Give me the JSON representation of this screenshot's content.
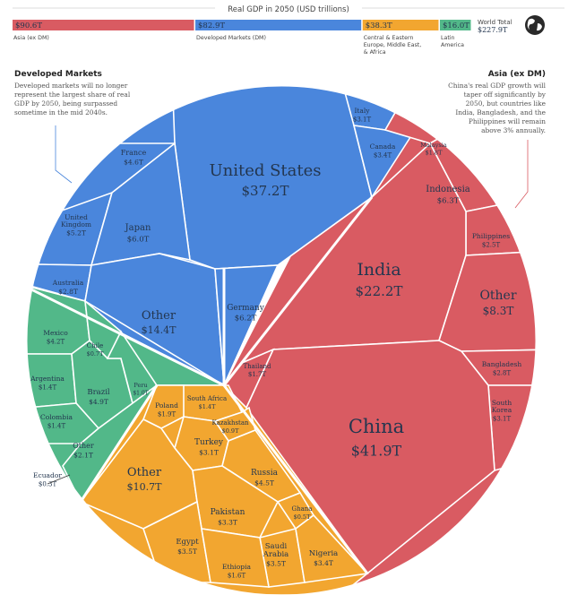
{
  "chart_data": {
    "type": "voronoi-treemap",
    "title": "Real GDP in 2050 (USD trillions)",
    "world_total": {
      "label": "World Total",
      "value_text": "$227.9T",
      "value": 227.9
    },
    "colors": {
      "asia": "#d95b62",
      "developed": "#4a86dc",
      "cee_me_africa": "#f2a630",
      "latin_america": "#52b889",
      "line": "#ffffff"
    },
    "regions": [
      {
        "key": "asia",
        "name": "Asia (ex DM)",
        "value": 90.6,
        "value_text": "$90.6T",
        "color": "#d95b62"
      },
      {
        "key": "developed",
        "name": "Developed Markets (DM)",
        "value": 82.9,
        "value_text": "$82.9T",
        "color": "#4a86dc"
      },
      {
        "key": "cee_me_africa",
        "name": "Central & Eastern Europe, Middle East, & Africa",
        "name_lines": [
          "Central & Eastern",
          "Europe, Middle East,",
          "& Africa"
        ],
        "value": 38.3,
        "value_text": "$38.3T",
        "color": "#f2a630"
      },
      {
        "key": "latin_america",
        "name": "Latin America",
        "name_lines": [
          "Latin",
          "America"
        ],
        "value": 16.0,
        "value_text": "$16.0T",
        "color": "#52b889"
      }
    ],
    "countries": [
      {
        "name": "United States",
        "value": 37.2,
        "value_text": "$37.2T",
        "region": "developed"
      },
      {
        "name": "Italy",
        "value": 3.1,
        "value_text": "$3.1T",
        "region": "developed"
      },
      {
        "name": "France",
        "value": 4.6,
        "value_text": "$4.6T",
        "region": "developed"
      },
      {
        "name": "Canada",
        "value": 3.4,
        "value_text": "$3.4T",
        "region": "developed"
      },
      {
        "name": "United Kingdom",
        "value": 5.2,
        "value_text": "$5.2T",
        "region": "developed"
      },
      {
        "name": "Japan",
        "value": 6.0,
        "value_text": "$6.0T",
        "region": "developed"
      },
      {
        "name": "Australia",
        "value": 2.8,
        "value_text": "$2.8T",
        "region": "developed"
      },
      {
        "name": "Germany",
        "value": 6.2,
        "value_text": "$6.2T",
        "region": "developed"
      },
      {
        "name": "Other",
        "value": 14.4,
        "value_text": "$14.4T",
        "region": "developed"
      },
      {
        "name": "Malaysia",
        "value": 1.8,
        "value_text": "$1.8T",
        "region": "asia"
      },
      {
        "name": "Indonesia",
        "value": 6.3,
        "value_text": "$6.3T",
        "region": "asia"
      },
      {
        "name": "Philippines",
        "value": 2.5,
        "value_text": "$2.5T",
        "region": "asia"
      },
      {
        "name": "India",
        "value": 22.2,
        "value_text": "$22.2T",
        "region": "asia"
      },
      {
        "name": "Other",
        "value": 8.3,
        "value_text": "$8.3T",
        "region": "asia"
      },
      {
        "name": "Thailand",
        "value": 1.7,
        "value_text": "$1.7T",
        "region": "asia"
      },
      {
        "name": "Bangladesh",
        "value": 2.8,
        "value_text": "$2.8T",
        "region": "asia"
      },
      {
        "name": "South Korea",
        "value": 3.1,
        "value_text": "$3.1T",
        "region": "asia"
      },
      {
        "name": "China",
        "value": 41.9,
        "value_text": "$41.9T",
        "region": "asia"
      },
      {
        "name": "Mexico",
        "value": 4.2,
        "value_text": "$4.2T",
        "region": "latin_america"
      },
      {
        "name": "Chile",
        "value": 0.7,
        "value_text": "$0.7T",
        "region": "latin_america"
      },
      {
        "name": "Argentina",
        "value": 1.4,
        "value_text": "$1.4T",
        "region": "latin_america"
      },
      {
        "name": "Brazil",
        "value": 4.9,
        "value_text": "$4.9T",
        "region": "latin_america"
      },
      {
        "name": "Peru",
        "value": 1.0,
        "value_text": "$1.0T",
        "region": "latin_america"
      },
      {
        "name": "Colombia",
        "value": 1.4,
        "value_text": "$1.4T",
        "region": "latin_america"
      },
      {
        "name": "Other",
        "value": 2.1,
        "value_text": "$2.1T",
        "region": "latin_america"
      },
      {
        "name": "Ecuador",
        "value": 0.3,
        "value_text": "$0.3T",
        "region": "latin_america"
      },
      {
        "name": "South Africa",
        "value": 1.4,
        "value_text": "$1.4T",
        "region": "cee_me_africa"
      },
      {
        "name": "Poland",
        "value": 1.9,
        "value_text": "$1.9T",
        "region": "cee_me_africa"
      },
      {
        "name": "Kazakhstan",
        "value": 0.9,
        "value_text": "$0.9T",
        "region": "cee_me_africa"
      },
      {
        "name": "Turkey",
        "value": 3.1,
        "value_text": "$3.1T",
        "region": "cee_me_africa"
      },
      {
        "name": "Other",
        "value": 10.7,
        "value_text": "$10.7T",
        "region": "cee_me_africa"
      },
      {
        "name": "Russia",
        "value": 4.5,
        "value_text": "$4.5T",
        "region": "cee_me_africa"
      },
      {
        "name": "Pakistan",
        "value": 3.3,
        "value_text": "$3.3T",
        "region": "cee_me_africa"
      },
      {
        "name": "Ghana",
        "value": 0.5,
        "value_text": "$0.5T",
        "region": "cee_me_africa"
      },
      {
        "name": "Egypt",
        "value": 3.5,
        "value_text": "$3.5T",
        "region": "cee_me_africa"
      },
      {
        "name": "Saudi Arabia",
        "value": 3.5,
        "value_text": "$3.5T",
        "region": "cee_me_africa"
      },
      {
        "name": "Ethiopia",
        "value": 1.6,
        "value_text": "$1.6T",
        "region": "cee_me_africa"
      },
      {
        "name": "Nigeria",
        "value": 3.4,
        "value_text": "$3.4T",
        "region": "cee_me_africa"
      }
    ],
    "annotations": [
      {
        "key": "developed",
        "heading": "Developed Markets",
        "lines": [
          "Developed markets will no longer",
          "represent the largest share of real",
          "GDP by 2050, being surpassed",
          "sometime in the mid 2040s."
        ]
      },
      {
        "key": "asia",
        "heading": "Asia (ex DM)",
        "lines": [
          "China's real GDP growth will",
          "taper off significantly by",
          "2050, but countries like",
          "India, Bangladesh, and the",
          "Philippines will remain",
          "above 3% annually."
        ]
      }
    ],
    "icons": {
      "world": "globe-icon"
    }
  }
}
